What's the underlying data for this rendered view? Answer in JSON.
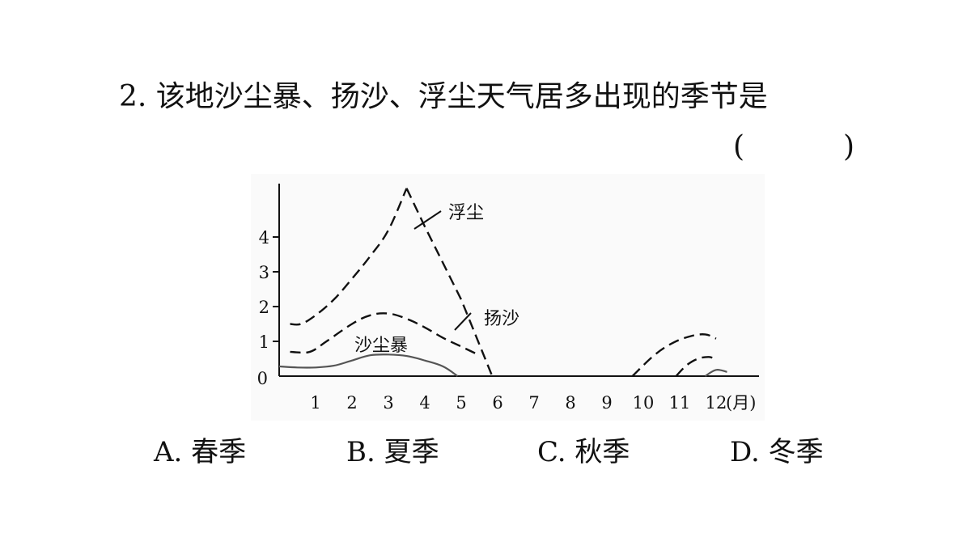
{
  "question": {
    "text": "2. 该地沙尘暴、扬沙、浮尘天气居多出现的季节是",
    "paren_open": "(",
    "paren_close": ")"
  },
  "chart_data": {
    "type": "line",
    "title": "",
    "xlabel": "",
    "ylabel": "",
    "x_unit_label": "(月)",
    "xlim": [
      0,
      13
    ],
    "ylim": [
      0,
      5.5
    ],
    "x_ticks": [
      "1",
      "2",
      "3",
      "4",
      "5",
      "6",
      "7",
      "8",
      "9",
      "10",
      "11",
      "12"
    ],
    "y_ticks": [
      "0",
      "1",
      "2",
      "3",
      "4"
    ],
    "grid": false,
    "series": [
      {
        "name": "浮尘",
        "style": "dashed",
        "segments": [
          [
            [
              0.3,
              1.5
            ],
            [
              0.6,
              1.5
            ],
            [
              1,
              1.75
            ],
            [
              1.5,
              2.2
            ],
            [
              2,
              2.8
            ],
            [
              2.5,
              3.45
            ],
            [
              3,
              4.2
            ],
            [
              3.5,
              5.4
            ],
            [
              4,
              4.3
            ],
            [
              5,
              2.2
            ],
            [
              5.85,
              0
            ]
          ],
          [
            [
              9.7,
              0
            ],
            [
              10.3,
              0.6
            ],
            [
              10.8,
              0.95
            ],
            [
              11.3,
              1.15
            ],
            [
              11.7,
              1.2
            ],
            [
              12,
              1.08
            ]
          ]
        ]
      },
      {
        "name": "扬沙",
        "style": "dashed",
        "segments": [
          [
            [
              0.3,
              0.7
            ],
            [
              0.6,
              0.68
            ],
            [
              0.9,
              0.72
            ],
            [
              1.3,
              1.0
            ],
            [
              2,
              1.5
            ],
            [
              2.5,
              1.75
            ],
            [
              3,
              1.8
            ],
            [
              3.5,
              1.65
            ],
            [
              4,
              1.4
            ],
            [
              4.5,
              1.1
            ],
            [
              5,
              0.85
            ],
            [
              5.5,
              0.6
            ]
          ],
          [
            [
              10.9,
              0
            ],
            [
              11.2,
              0.32
            ],
            [
              11.5,
              0.5
            ],
            [
              11.8,
              0.55
            ],
            [
              12,
              0.48
            ]
          ]
        ]
      },
      {
        "name": "沙尘暴",
        "style": "solid",
        "segments": [
          [
            [
              0,
              0.28
            ],
            [
              0.5,
              0.25
            ],
            [
              1,
              0.25
            ],
            [
              1.5,
              0.3
            ],
            [
              2,
              0.45
            ],
            [
              2.5,
              0.6
            ],
            [
              3,
              0.62
            ],
            [
              3.5,
              0.58
            ],
            [
              4,
              0.45
            ],
            [
              4.5,
              0.28
            ],
            [
              4.9,
              0
            ]
          ],
          [
            [
              11.7,
              0
            ],
            [
              12,
              0.18
            ],
            [
              12.3,
              0.12
            ]
          ]
        ]
      }
    ]
  },
  "options": [
    {
      "label": "A. 春季"
    },
    {
      "label": "B. 夏季"
    },
    {
      "label": "C. 秋季"
    },
    {
      "label": "D. 冬季"
    }
  ]
}
